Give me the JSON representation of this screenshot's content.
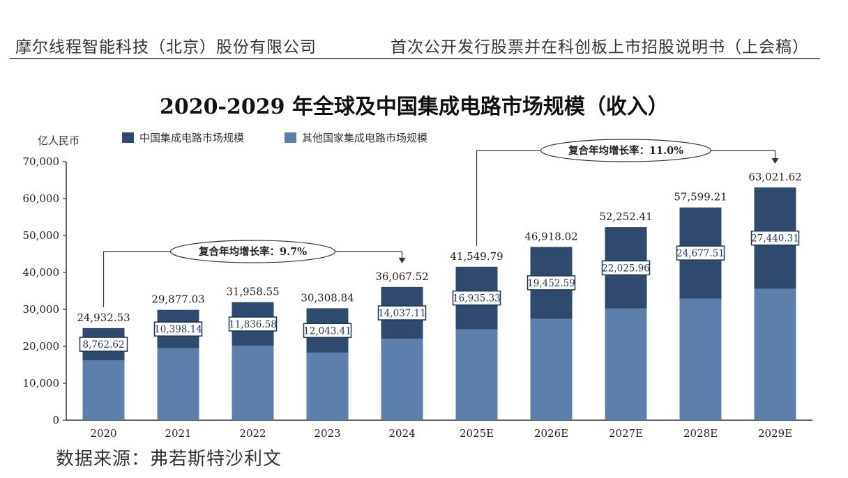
{
  "header": {
    "left": "摩尔线程智能科技（北京）股份有限公司",
    "right": "首次公开发行股票并在科创板上市招股说明书（上会稿）"
  },
  "footer": {
    "source": "数据来源：弗若斯特沙利文"
  },
  "colors": {
    "china": "#2f4a6d",
    "other": "#5c7fac",
    "axis": "#333333"
  },
  "chart_data": {
    "type": "bar",
    "title": "2020-2029 年全球及中国集成电路市场规模（收入）",
    "unit_label": "亿人民币",
    "categories": [
      "2020",
      "2021",
      "2022",
      "2023",
      "2024",
      "2025E",
      "2026E",
      "2027E",
      "2028E",
      "2029E"
    ],
    "series": [
      {
        "name": "中国集成电路市场规模",
        "values": [
          8762.62,
          10398.14,
          11836.58,
          12043.41,
          14037.11,
          16935.33,
          19452.59,
          22025.96,
          24677.51,
          27440.31
        ],
        "labels": [
          "8,762.62",
          "10,398.14",
          "11,836.58",
          "12,043.41",
          "14,037.11",
          "16,935.33",
          "19,452.59",
          "22,025.96",
          "24,677.51",
          "27,440.31"
        ]
      },
      {
        "name": "其他国家集成电路市场规模",
        "values": [
          16169.91,
          19478.89,
          20121.97,
          18265.43,
          22030.41,
          24614.46,
          27465.43,
          30226.45,
          32921.7,
          35581.31
        ]
      }
    ],
    "totals": [
      24932.53,
      29877.03,
      31958.55,
      30308.84,
      36067.52,
      41549.79,
      46918.02,
      52252.41,
      57599.21,
      63021.62
    ],
    "total_labels": [
      "24,932.53",
      "29,877.03",
      "31,958.55",
      "30,308.84",
      "36,067.52",
      "41,549.79",
      "46,918.02",
      "52,252.41",
      "57,599.21",
      "63,021.62"
    ],
    "stack_order": [
      "其他国家集成电路市场规模",
      "中国集成电路市场规模"
    ],
    "ylim": [
      0,
      70000
    ],
    "yticks": [
      0,
      10000,
      20000,
      30000,
      40000,
      50000,
      60000,
      70000
    ],
    "ytick_labels": [
      "0",
      "10,000",
      "20,000",
      "30,000",
      "40,000",
      "50,000",
      "60,000",
      "70,000"
    ],
    "legend_position": "top-left",
    "grid": false,
    "annotations": [
      {
        "text": "复合年均增长率：9.7%",
        "from": "2020",
        "to": "2024"
      },
      {
        "text": "复合年均增长率：11.0%",
        "from": "2025E",
        "to": "2029E"
      }
    ]
  }
}
